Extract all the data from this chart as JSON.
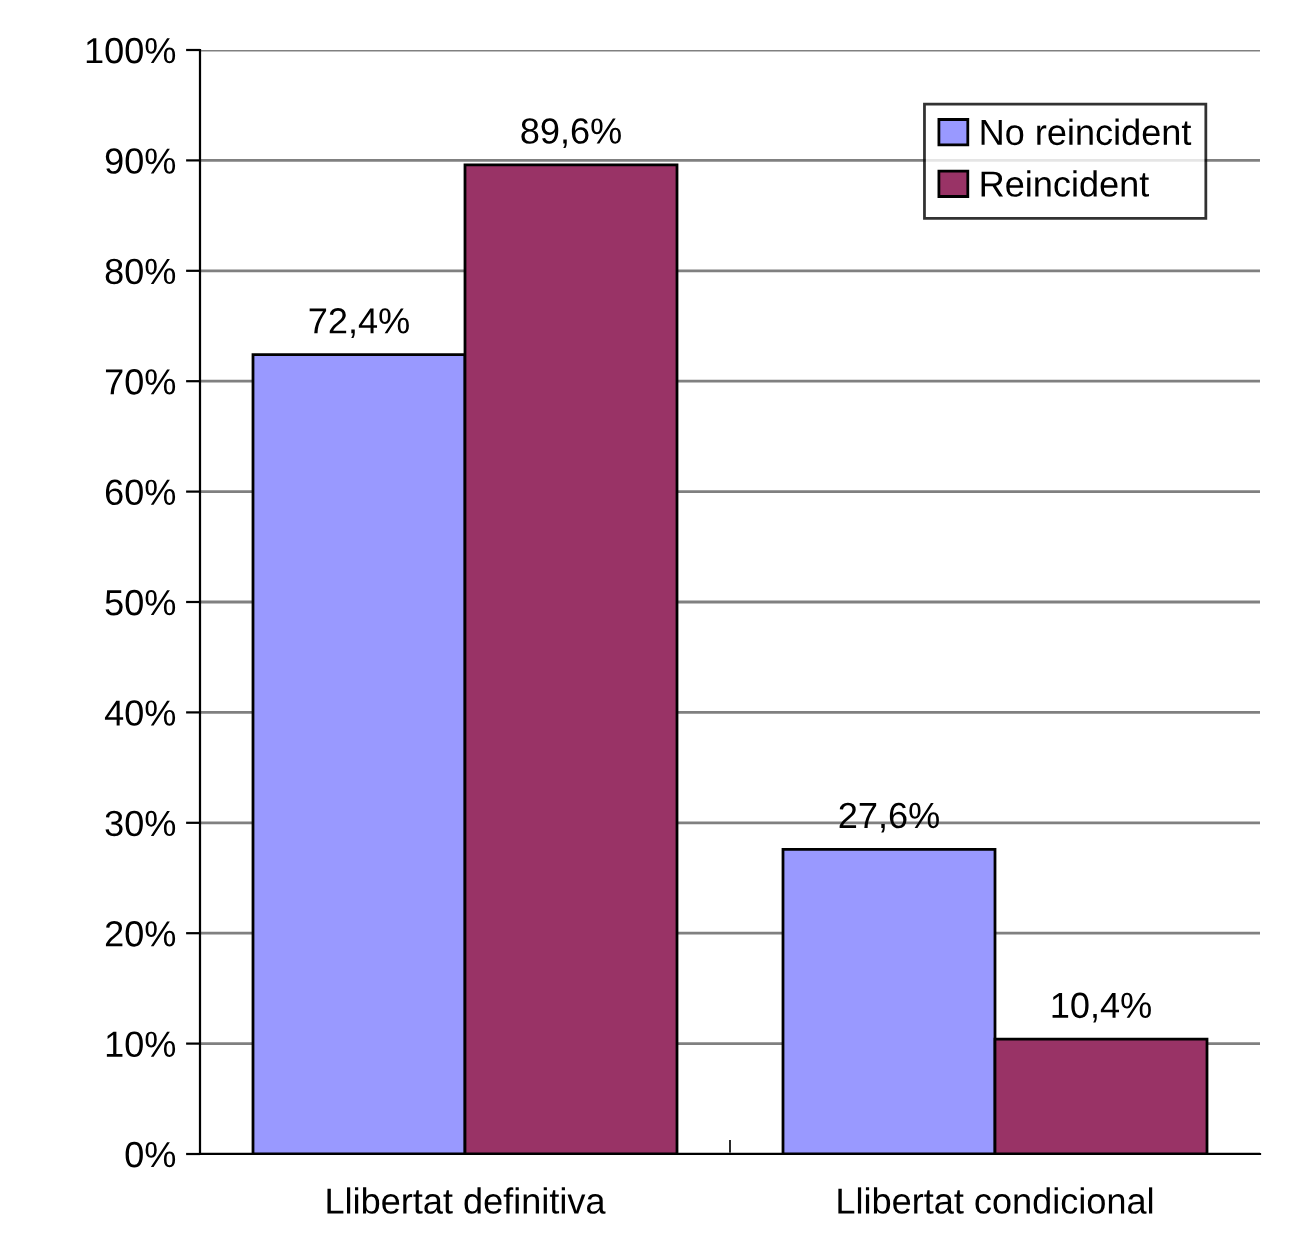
{
  "chart_data": {
    "type": "bar",
    "categories": [
      "Llibertat definitiva",
      "Llibertat condicional"
    ],
    "series": [
      {
        "name": "No reincident",
        "color": "#9999ff",
        "values": [
          72.4,
          27.6
        ],
        "value_labels": [
          "72,4%",
          "27,6%"
        ]
      },
      {
        "name": "Reincident",
        "color": "#993366",
        "values": [
          89.6,
          10.4
        ],
        "value_labels": [
          "89,6%",
          "10,4%"
        ]
      }
    ],
    "ylim": [
      0,
      100
    ],
    "yticks": [
      {
        "value": 0,
        "label": "0%"
      },
      {
        "value": 10,
        "label": "10%"
      },
      {
        "value": 20,
        "label": "20%"
      },
      {
        "value": 30,
        "label": "30%"
      },
      {
        "value": 40,
        "label": "40%"
      },
      {
        "value": 50,
        "label": "50%"
      },
      {
        "value": 60,
        "label": "60%"
      },
      {
        "value": 70,
        "label": "70%"
      },
      {
        "value": 80,
        "label": "80%"
      },
      {
        "value": 90,
        "label": "90%"
      },
      {
        "value": 100,
        "label": "100%"
      }
    ],
    "grid": "y",
    "legend": "top right"
  }
}
